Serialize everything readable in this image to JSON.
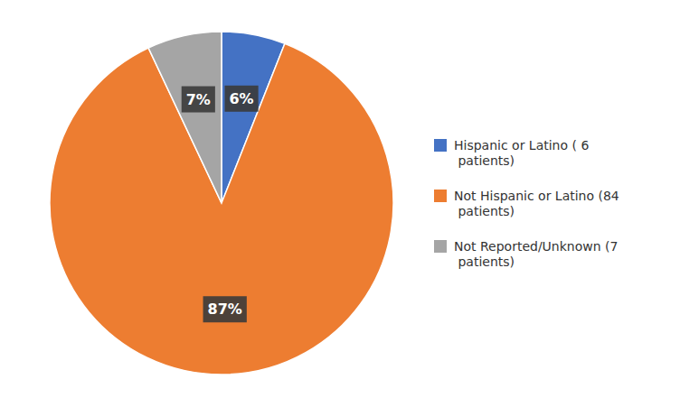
{
  "chart_data": {
    "type": "pie",
    "categories": [
      "Hispanic or Latino ( 6\n patients)",
      "Not Hispanic or Latino (84\n patients)",
      "Not Reported/Unknown (7\n patients)"
    ],
    "values": [
      6,
      87,
      7
    ],
    "value_labels": [
      "6%",
      "87%",
      "7%"
    ],
    "colors": [
      "#4472C4",
      "#ED7D31",
      "#A5A5A5"
    ],
    "data_labels": true,
    "legend": "right"
  }
}
